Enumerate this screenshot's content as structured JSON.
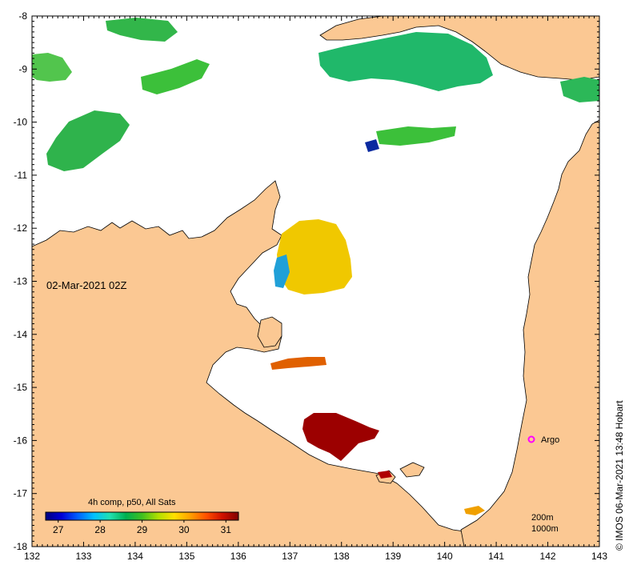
{
  "map": {
    "date_label": "02-Mar-2021 02Z",
    "credit": "© IMOS 06-Mar-2021 13:48 Hobart",
    "argo_label": "Argo",
    "depth_labels": [
      "200m",
      "1000m"
    ],
    "legend": {
      "title": "4h comp, p50, All Sats",
      "ticks": [
        "27",
        "28",
        "29",
        "30",
        "31"
      ],
      "range": [
        26.7,
        31.3
      ],
      "colors": [
        "#00007f",
        "#0000d8",
        "#0060ff",
        "#00c0ff",
        "#20e0b0",
        "#00b050",
        "#40c020",
        "#b0e000",
        "#ffe000",
        "#ffa000",
        "#ff5000",
        "#d01000",
        "#7f0000"
      ]
    },
    "colors": {
      "land": "#fbc893",
      "sea": "#ffffff",
      "coast": "#000000",
      "argo": "#ff00ff"
    },
    "axes": {
      "lon_ticks": [
        "132",
        "133",
        "134",
        "135",
        "136",
        "137",
        "138",
        "139",
        "140",
        "141",
        "142",
        "143"
      ],
      "lat_ticks": [
        "-8",
        "-9",
        "-10",
        "-11",
        "-12",
        "-13",
        "-14",
        "-15",
        "-16",
        "-17",
        "-18"
      ],
      "lon_range": [
        132,
        143
      ],
      "lat_range": [
        -18,
        -8
      ]
    }
  }
}
